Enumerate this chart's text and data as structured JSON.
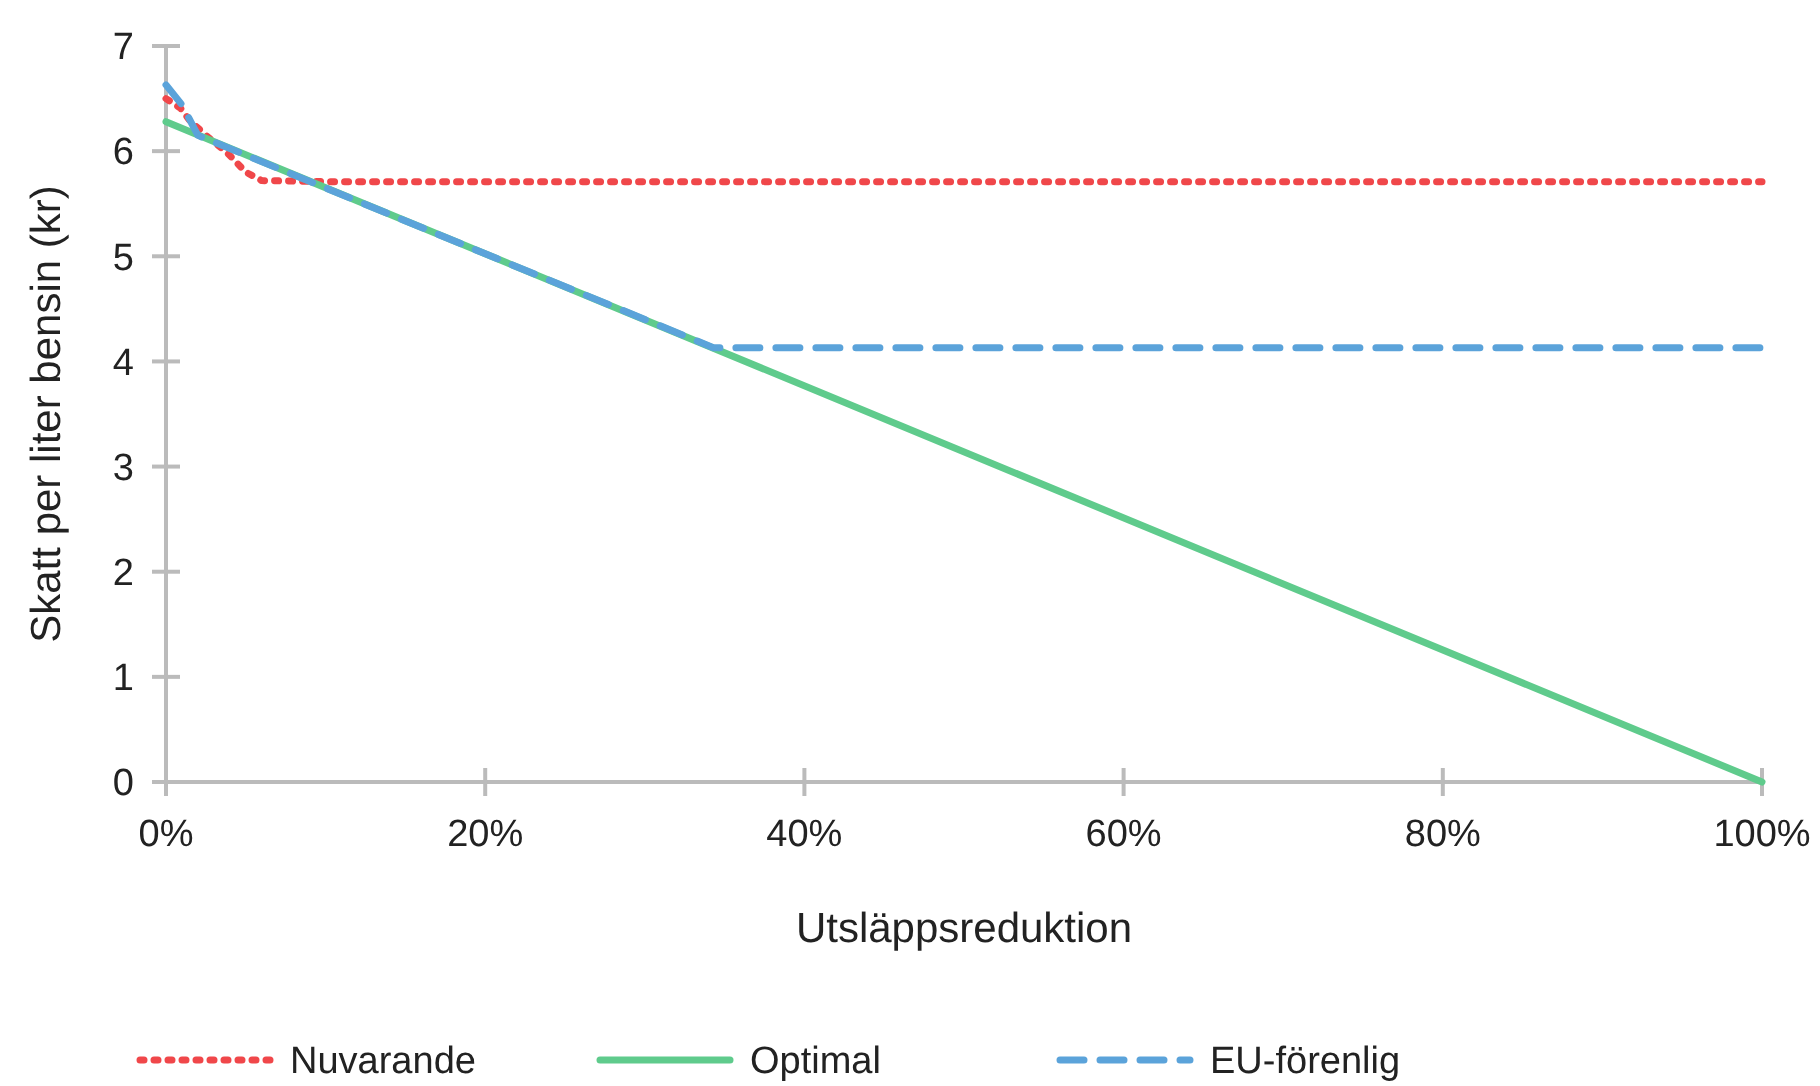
{
  "chart_data": {
    "type": "line",
    "xlabel": "Utsläppsreduktion",
    "ylabel": "Skatt per liter bensin (kr)",
    "xlim": [
      0,
      100
    ],
    "ylim": [
      0,
      7
    ],
    "xticks": [
      {
        "value": 0,
        "label": "0%"
      },
      {
        "value": 20,
        "label": "20%"
      },
      {
        "value": 40,
        "label": "40%"
      },
      {
        "value": 60,
        "label": "60%"
      },
      {
        "value": 80,
        "label": "80%"
      },
      {
        "value": 100,
        "label": "100%"
      }
    ],
    "yticks": [
      0,
      1,
      2,
      3,
      4,
      5,
      6,
      7
    ],
    "grid": false,
    "legend": "bottom",
    "series": [
      {
        "name": "Nuvarande",
        "color": "#f0474a",
        "line_style": "dotted",
        "x": [
          0,
          0.9,
          1.5,
          2.5,
          3.8,
          5,
          6,
          10,
          50,
          100
        ],
        "values": [
          6.5,
          6.41,
          6.29,
          6.15,
          5.99,
          5.8,
          5.72,
          5.71,
          5.71,
          5.71
        ]
      },
      {
        "name": "Optimal",
        "color": "#5fcb8c",
        "line_style": "solid",
        "x": [
          0,
          100
        ],
        "values": [
          6.28,
          0
        ]
      },
      {
        "name": "EU-förenlig",
        "color": "#5ba3da",
        "line_style": "dashed",
        "x": [
          0,
          1,
          2,
          34.3,
          50,
          100
        ],
        "values": [
          6.63,
          6.44,
          6.15,
          4.13,
          4.13,
          4.13
        ]
      }
    ]
  }
}
